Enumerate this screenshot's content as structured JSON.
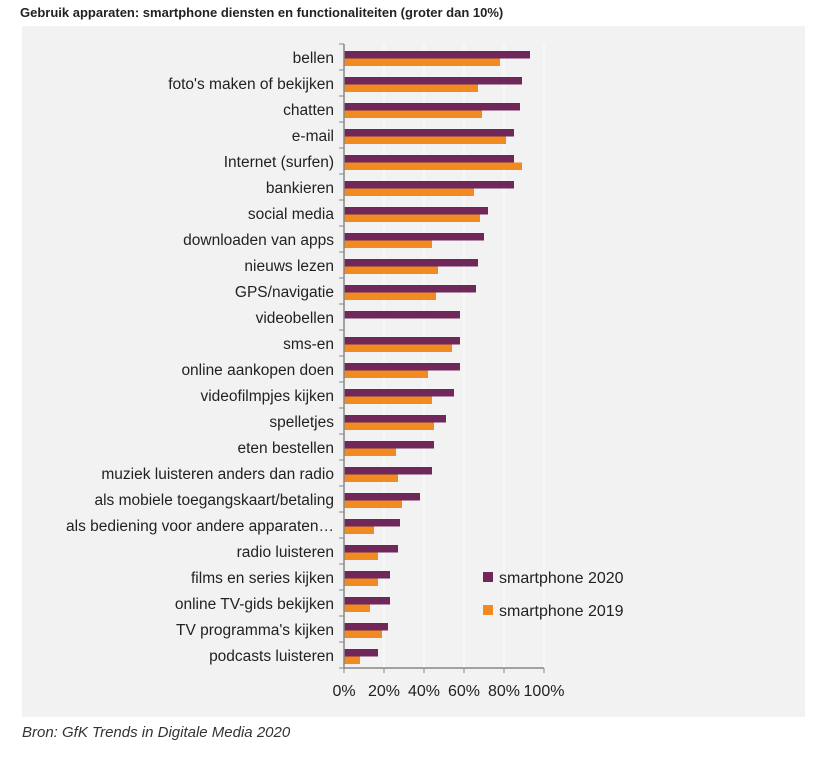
{
  "title": "Gebruik apparaten: smartphone diensten en functionaliteiten (groter dan 10%)",
  "source": "Bron: GfK Trends in Digitale Media 2020",
  "chart_data": {
    "type": "bar",
    "orientation": "horizontal",
    "categories": [
      "bellen",
      "foto's maken of bekijken",
      "chatten",
      "e-mail",
      "Internet (surfen)",
      "bankieren",
      "social media",
      "downloaden van apps",
      "nieuws lezen",
      "GPS/navigatie",
      "videobellen",
      "sms-en",
      "online aankopen doen",
      "videofilmpjes kijken",
      "spelletjes",
      "eten bestellen",
      "muziek luisteren anders dan radio",
      "als mobiele toegangskaart/betaling",
      "als bediening voor andere apparaten…",
      "radio luisteren",
      "films en series kijken",
      "online TV-gids bekijken",
      "TV programma's kijken",
      "podcasts luisteren"
    ],
    "series": [
      {
        "name": "smartphone 2020",
        "color": "#70285a",
        "values": [
          93,
          89,
          88,
          85,
          85,
          85,
          72,
          70,
          67,
          66,
          58,
          58,
          58,
          55,
          51,
          45,
          44,
          38,
          28,
          27,
          23,
          23,
          22,
          17
        ]
      },
      {
        "name": "smartphone 2019",
        "color": "#f28a22",
        "values": [
          78,
          67,
          69,
          81,
          89,
          65,
          68,
          44,
          47,
          46,
          null,
          54,
          42,
          44,
          45,
          26,
          27,
          29,
          15,
          17,
          17,
          13,
          19,
          8
        ]
      }
    ],
    "xlim": [
      0,
      100
    ],
    "xticks": [
      "0%",
      "20%",
      "40%",
      "60%",
      "80%",
      "100%"
    ],
    "grid": true,
    "legend": "right"
  }
}
